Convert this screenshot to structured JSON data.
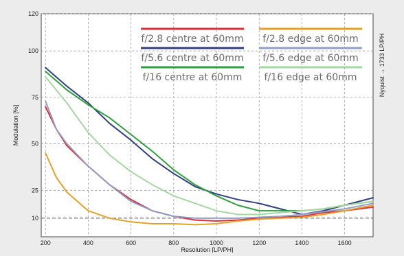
{
  "chart_data": {
    "type": "line",
    "xlabel": "Resolution [LP/PH]",
    "ylabel": "Modulation [%]",
    "right_label": "Nyquist → 1733 LP/PH",
    "xlim": [
      180,
      1733
    ],
    "ylim": [
      0,
      120
    ],
    "x_ticks": [
      200,
      400,
      600,
      800,
      1000,
      1200,
      1400,
      1600
    ],
    "y_ticks": [
      10,
      25,
      50,
      75,
      100,
      120
    ],
    "reference_line_y": 10,
    "grid": true,
    "legend_position": "top",
    "series": [
      {
        "name": "f/2.8 centre at 60mm",
        "color": "#d9303b",
        "x": [
          200,
          250,
          300,
          400,
          500,
          600,
          700,
          800,
          900,
          1000,
          1100,
          1200,
          1300,
          1400,
          1500,
          1600,
          1733
        ],
        "y": [
          70,
          58,
          49,
          38,
          28,
          20,
          14,
          11,
          9,
          8.5,
          9,
          10,
          10.5,
          11,
          13,
          14,
          16
        ]
      },
      {
        "name": "f/5.6 centre at 60mm",
        "color": "#2f3e7e",
        "x": [
          200,
          250,
          300,
          400,
          500,
          600,
          700,
          800,
          900,
          1000,
          1100,
          1200,
          1300,
          1400,
          1500,
          1600,
          1733
        ],
        "y": [
          91,
          86,
          81,
          72,
          61,
          52,
          42,
          34,
          27,
          23,
          20,
          18,
          15,
          12,
          14,
          17,
          21
        ]
      },
      {
        "name": "f/16 centre at 60mm",
        "color": "#2e9e3e",
        "x": [
          200,
          250,
          300,
          400,
          500,
          600,
          700,
          800,
          900,
          1000,
          1100,
          1200,
          1300,
          1400,
          1500,
          1600,
          1733
        ],
        "y": [
          89,
          84,
          79,
          71,
          64,
          55,
          46,
          36,
          28,
          22,
          17,
          14,
          14,
          14,
          15,
          17,
          19
        ]
      },
      {
        "name": "f/2.8 edge at 60mm",
        "color": "#e5a12a",
        "x": [
          200,
          250,
          300,
          400,
          500,
          600,
          700,
          800,
          900,
          1000,
          1100,
          1200,
          1300,
          1400,
          1500,
          1600,
          1733
        ],
        "y": [
          45,
          32,
          24,
          14,
          10,
          8,
          7,
          7,
          6.5,
          7,
          8.5,
          9.5,
          10,
          10.5,
          12,
          14,
          17
        ]
      },
      {
        "name": "f/5.6 edge at 60mm",
        "color": "#8f9fc3",
        "x": [
          200,
          250,
          300,
          400,
          500,
          600,
          700,
          800,
          900,
          1000,
          1100,
          1200,
          1300,
          1400,
          1500,
          1600,
          1733
        ],
        "y": [
          73,
          58,
          50,
          38,
          28,
          19,
          14,
          11,
          10,
          10,
          10,
          10.5,
          11,
          12,
          13.5,
          15,
          18
        ]
      },
      {
        "name": "f/16 edge at 60mm",
        "color": "#a6d6a1",
        "x": [
          200,
          250,
          300,
          400,
          500,
          600,
          700,
          800,
          900,
          1000,
          1100,
          1200,
          1300,
          1400,
          1500,
          1600,
          1733
        ],
        "y": [
          86,
          79,
          72,
          56,
          44,
          35,
          28,
          22,
          18,
          14,
          12,
          12,
          13,
          14,
          15,
          17,
          19
        ]
      }
    ]
  }
}
